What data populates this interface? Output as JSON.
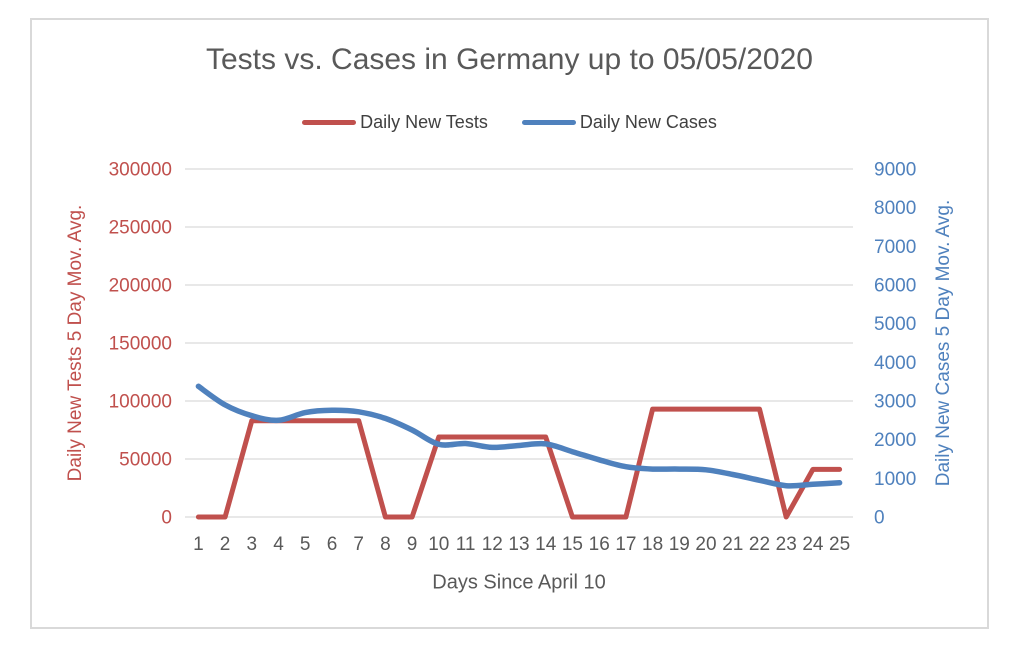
{
  "chart": {
    "title": "Tests vs. Cases in Germany up to 05/05/2020",
    "legend": [
      {
        "label": "Daily New Tests",
        "color": "#C0504D"
      },
      {
        "label": "Daily New Cases",
        "color": "#4F81BD"
      }
    ]
  },
  "chart_data": {
    "type": "line",
    "title": "Tests vs. Cases in Germany up to 05/05/2020",
    "xlabel": "Days Since April 10",
    "x": [
      1,
      2,
      3,
      4,
      5,
      6,
      7,
      8,
      9,
      10,
      11,
      12,
      13,
      14,
      15,
      16,
      17,
      18,
      19,
      20,
      21,
      22,
      23,
      24,
      25
    ],
    "series": [
      {
        "id": "tests",
        "name": "Daily New Tests",
        "axis": "left",
        "color": "#C0504D",
        "smooth": false,
        "width": 5,
        "values": [
          0,
          0,
          83000,
          83000,
          83000,
          83000,
          83000,
          0,
          0,
          69000,
          69000,
          69000,
          69000,
          69000,
          0,
          0,
          0,
          93000,
          93000,
          93000,
          93000,
          93000,
          0,
          41000,
          41000
        ]
      },
      {
        "id": "cases",
        "name": "Daily New Cases",
        "axis": "right",
        "color": "#4F81BD",
        "smooth": true,
        "width": 5.5,
        "values": [
          3380,
          2900,
          2620,
          2500,
          2700,
          2760,
          2720,
          2550,
          2250,
          1880,
          1900,
          1800,
          1850,
          1890,
          1690,
          1480,
          1300,
          1240,
          1240,
          1220,
          1100,
          950,
          810,
          845,
          885
        ]
      }
    ],
    "left_axis": {
      "label": "Daily New Tests 5 Day Mov. Avg.",
      "min": 0,
      "max": 300000,
      "ticks": [
        0,
        50000,
        100000,
        150000,
        200000,
        250000,
        300000
      ],
      "color": "#C0504D"
    },
    "right_axis": {
      "label": "Daily New Cases 5 Day Mov. Avg.",
      "min": 0,
      "max": 9000,
      "ticks": [
        0,
        1000,
        2000,
        3000,
        4000,
        5000,
        6000,
        7000,
        8000,
        9000
      ],
      "color": "#4F81BD"
    },
    "grid": true,
    "legend_position": "top"
  },
  "style": {
    "accent_red": "#C0504D",
    "accent_blue": "#4F81BD",
    "title_color": "#595959",
    "legend_text_color": "#404040",
    "gridline_color": "#D9D9D9",
    "frame_border_color": "#D9D9D9"
  }
}
